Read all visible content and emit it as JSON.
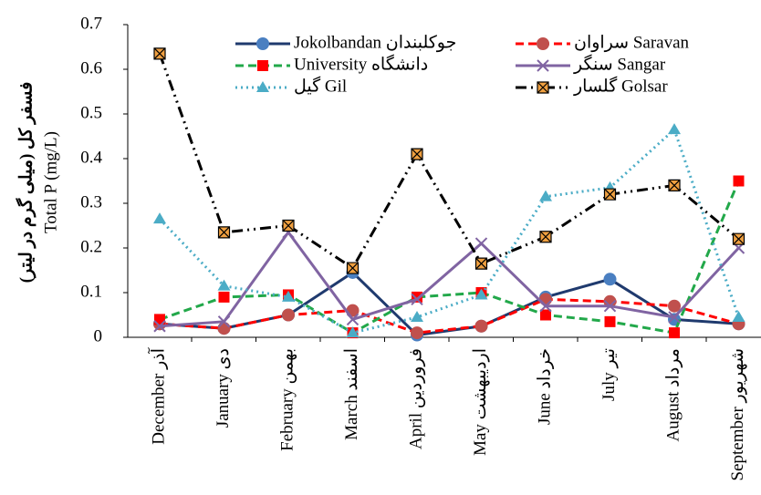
{
  "chart_data": {
    "type": "line",
    "ylabel_fa": "فسفر کل (میلی گرم در لیتر)",
    "ylabel": "Total P (mg/L)",
    "categories": [
      "December آذر",
      "January دی",
      "February بهمن",
      "March اسفند",
      "April فروردین",
      "May اردیبهشت",
      "June خرداد",
      "July تیر",
      "August مرداد",
      "September شهریور"
    ],
    "ylim": [
      0,
      0.7
    ],
    "yticks": [
      0,
      0.1,
      0.2,
      0.3,
      0.4,
      0.5,
      0.6,
      0.7
    ],
    "series": [
      {
        "name": "Jokolbandan جوکلبندان",
        "color": "#1f3a6e",
        "line_style": "solid",
        "marker": "circle",
        "marker_color": "#4a7fc1",
        "values": [
          0.03,
          0.02,
          0.05,
          0.145,
          0.005,
          0.025,
          0.09,
          0.13,
          0.04,
          0.03
        ]
      },
      {
        "name": "سراوان Saravan",
        "color": "#ff0000",
        "line_style": "dashed",
        "marker": "circle",
        "marker_color": "#c0504d",
        "values": [
          0.03,
          0.02,
          0.05,
          0.06,
          0.01,
          0.025,
          0.085,
          0.08,
          0.07,
          0.03
        ]
      },
      {
        "name": "University دانشگاه",
        "color": "#22a84a",
        "line_style": "dashed",
        "marker": "square",
        "marker_color": "#ff0000",
        "values": [
          0.04,
          0.09,
          0.095,
          0.01,
          0.09,
          0.1,
          0.05,
          0.035,
          0.01,
          0.35
        ]
      },
      {
        "name": "سنگر Sangar",
        "color": "#8064a2",
        "line_style": "solid",
        "marker": "x",
        "marker_color": "#8064a2",
        "values": [
          0.025,
          0.035,
          0.235,
          0.04,
          0.085,
          0.21,
          0.07,
          0.07,
          0.045,
          0.2
        ]
      },
      {
        "name": "گیل Gil",
        "color": "#4bacc6",
        "line_style": "dotted",
        "marker": "triangle",
        "marker_color": "#4bacc6",
        "values": [
          0.265,
          0.115,
          0.09,
          0.01,
          0.045,
          0.095,
          0.315,
          0.335,
          0.465,
          0.045
        ]
      },
      {
        "name": "گلسار Golsar",
        "color": "#000000",
        "line_style": "dashdot",
        "marker": "square-x",
        "marker_color": "#f0a040",
        "values": [
          0.635,
          0.235,
          0.25,
          0.155,
          0.41,
          0.165,
          0.225,
          0.32,
          0.34,
          0.22
        ]
      }
    ]
  }
}
